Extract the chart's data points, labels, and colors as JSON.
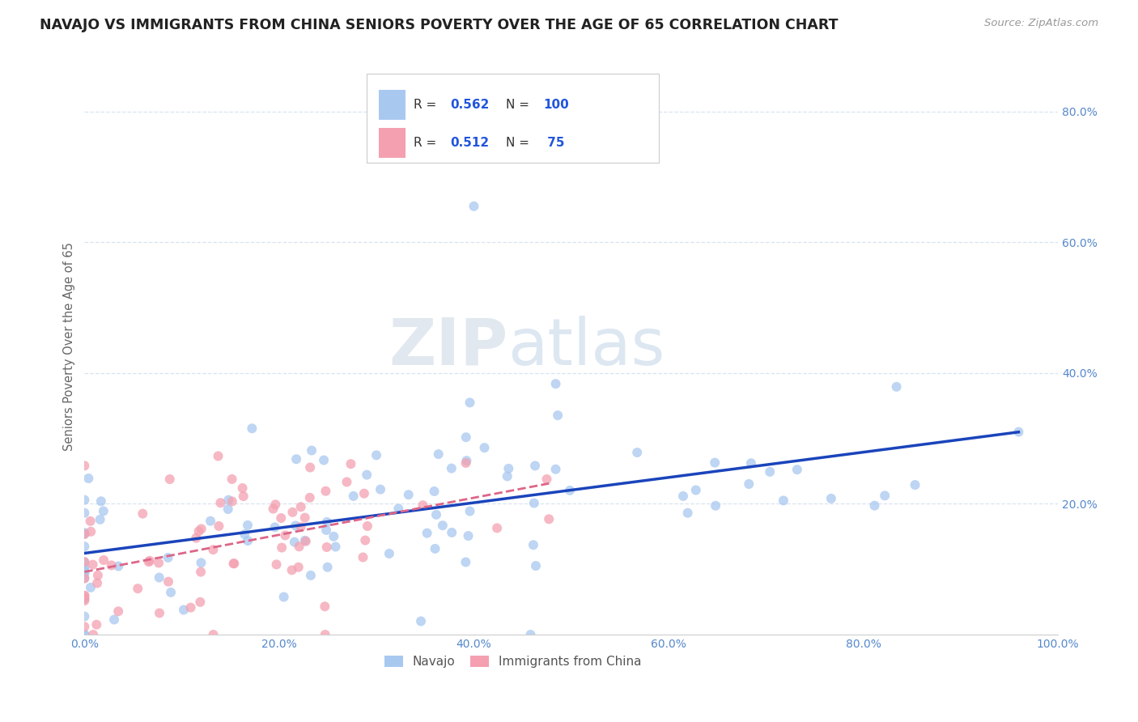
{
  "title": "NAVAJO VS IMMIGRANTS FROM CHINA SENIORS POVERTY OVER THE AGE OF 65 CORRELATION CHART",
  "source": "Source: ZipAtlas.com",
  "ylabel": "Seniors Poverty Over the Age of 65",
  "navajo_R": 0.562,
  "navajo_N": 100,
  "china_R": 0.512,
  "china_N": 75,
  "navajo_color": "#a8c8f0",
  "china_color": "#f4a0b0",
  "navajo_line_color": "#1a44bb",
  "china_line_color": "#dd6688",
  "xlim": [
    0,
    1
  ],
  "ylim": [
    0,
    0.88
  ],
  "background_color": "#ffffff",
  "grid_color": "#d8e4f0",
  "title_color": "#222222",
  "axis_label_color": "#5588cc",
  "legend_value_color": "#2255dd",
  "legend_text_color": "#333333",
  "title_fontsize": 12.5,
  "axis_fontsize": 10.5,
  "tick_fontsize": 10,
  "legend_fontsize": 11,
  "watermark_color": "#c8d8ea",
  "watermark_alpha": 0.5
}
